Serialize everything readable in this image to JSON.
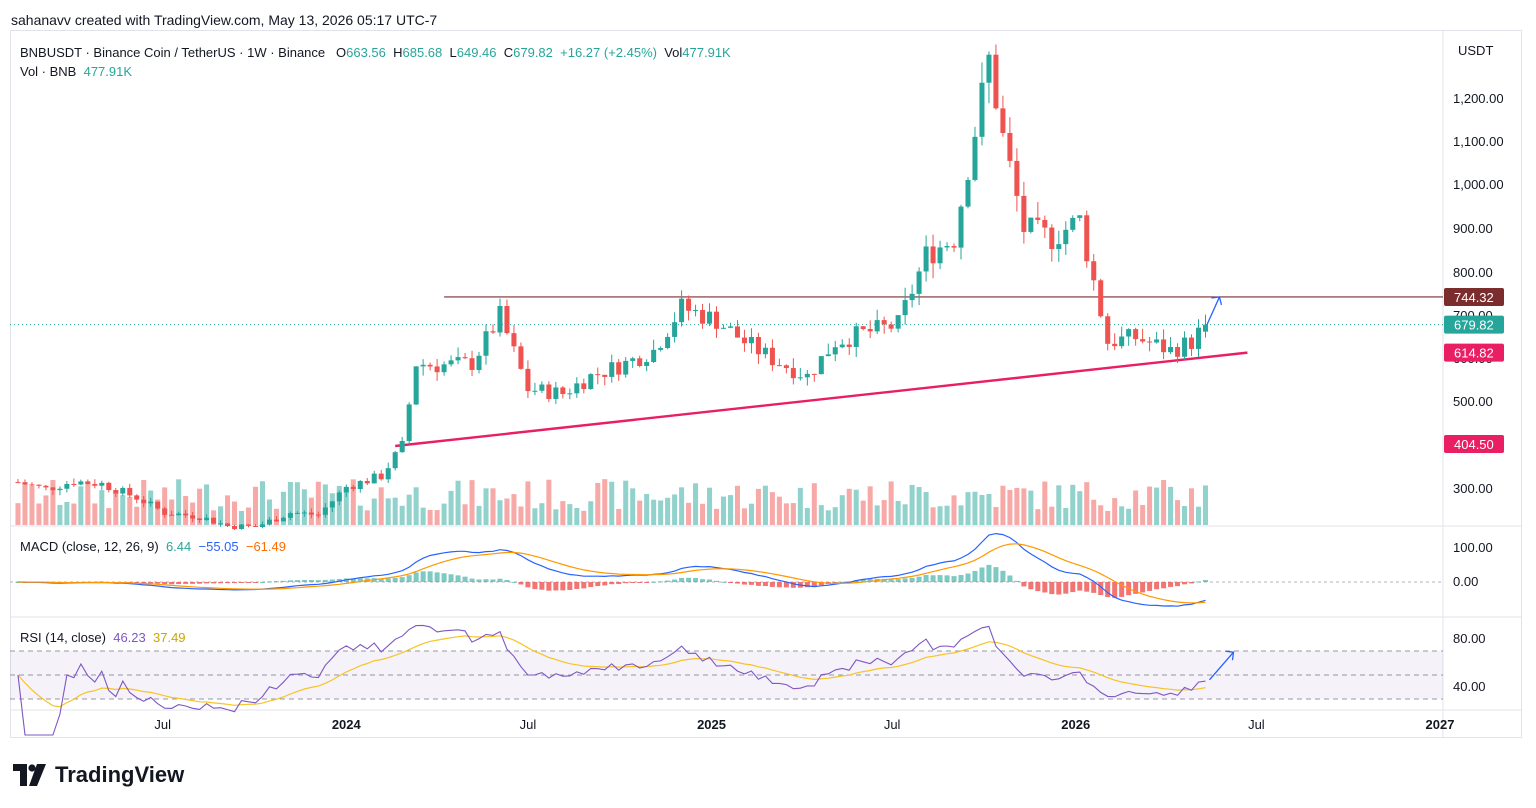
{
  "caption": "sahanavv created with TradingView.com, May 13, 2026 05:17 UTC-7",
  "legend": {
    "symbol": "BNBUSDT · Binance Coin / TetherUS · 1W · Binance",
    "o_label": "O",
    "o_value": "663.56",
    "h_label": "H",
    "h_value": "685.68",
    "l_label": "L",
    "l_value": "649.46",
    "c_label": "C",
    "c_value": "679.82",
    "change": "+16.27 (+2.45%)",
    "vol_label": "Vol",
    "vol_value": "477.91K",
    "vol_line_label": "Vol · BNB",
    "vol_line_value": "477.91K"
  },
  "macd_label": {
    "title": "MACD (close, 12, 26, 9)",
    "hist": "6.44",
    "macd": "−55.05",
    "signal": "−61.49"
  },
  "rsi_label": {
    "title": "RSI (14, close)",
    "rsi": "46.23",
    "ma": "37.49"
  },
  "brand": "TradingView",
  "colors": {
    "up": "#26a69a",
    "down": "#ef5350",
    "support": "#e91e63",
    "resistance": "#7b2d2d",
    "macd": "#2962ff",
    "signal": "#ff9800",
    "rsi": "#7e57c2",
    "rsi_ma": "#f7c325"
  },
  "chart_data": {
    "type": "candlestick",
    "currency": "USDT",
    "y_ticks": [
      "1,200.00",
      "1,100.00",
      "1,000.00",
      "900.00",
      "800.00",
      "700.00",
      "600.00",
      "500.00",
      "300.00"
    ],
    "y_tick_values": [
      1200,
      1100,
      1000,
      900,
      800,
      700,
      600,
      500,
      300
    ],
    "x_ticks": [
      {
        "label": "Jul",
        "date": "2023-07-01",
        "bold": false
      },
      {
        "label": "2024",
        "date": "2024-01-01",
        "bold": true
      },
      {
        "label": "Jul",
        "date": "2024-07-01",
        "bold": false
      },
      {
        "label": "2025",
        "date": "2025-01-01",
        "bold": true
      },
      {
        "label": "Jul",
        "date": "2025-07-01",
        "bold": false
      },
      {
        "label": "2026",
        "date": "2026-01-01",
        "bold": true
      },
      {
        "label": "Jul",
        "date": "2026-07-01",
        "bold": false
      },
      {
        "label": "2027",
        "date": "2027-01-01",
        "bold": true
      }
    ],
    "price_labels": [
      {
        "text": "744.32",
        "value": 744.32,
        "color": "#7b2d2d"
      },
      {
        "text": "679.82",
        "value": 679.82,
        "color": "#26a69a"
      },
      {
        "text": "614.82",
        "value": 614.82,
        "color": "#e91e63"
      },
      {
        "text": "404.50",
        "value": 404.5,
        "color": "#e91e63"
      }
    ],
    "resistance": {
      "value": 744.32,
      "from": "2024-04-01",
      "to": "2027-01-01"
    },
    "support_line": {
      "from_date": "2024-02-19",
      "from_value": 400,
      "to_date": "2026-06-22",
      "to_value": 614.82
    },
    "projection_arrow": {
      "from_date": "2026-05-11",
      "from_value": 672,
      "to_date": "2026-05-25",
      "to_value": 744.32
    },
    "closes": [
      {
        "date": "2023-02-06",
        "close": 316
      },
      {
        "date": "2023-03-06",
        "close": 300
      },
      {
        "date": "2023-04-03",
        "close": 318
      },
      {
        "date": "2023-05-01",
        "close": 312
      },
      {
        "date": "2023-06-05",
        "close": 280
      },
      {
        "date": "2023-07-03",
        "close": 245
      },
      {
        "date": "2023-08-07",
        "close": 236
      },
      {
        "date": "2023-09-04",
        "close": 214
      },
      {
        "date": "2023-10-02",
        "close": 212
      },
      {
        "date": "2023-11-06",
        "close": 245
      },
      {
        "date": "2023-12-04",
        "close": 240
      },
      {
        "date": "2024-01-01",
        "close": 305
      },
      {
        "date": "2024-02-05",
        "close": 330
      },
      {
        "date": "2024-02-26",
        "close": 400
      },
      {
        "date": "2024-03-11",
        "close": 590
      },
      {
        "date": "2024-04-01",
        "close": 585
      },
      {
        "date": "2024-05-06",
        "close": 590
      },
      {
        "date": "2024-06-03",
        "close": 700
      },
      {
        "date": "2024-07-01",
        "close": 530
      },
      {
        "date": "2024-08-05",
        "close": 520
      },
      {
        "date": "2024-09-02",
        "close": 560
      },
      {
        "date": "2024-10-07",
        "close": 590
      },
      {
        "date": "2024-11-04",
        "close": 620
      },
      {
        "date": "2024-12-02",
        "close": 720
      },
      {
        "date": "2025-01-06",
        "close": 690
      },
      {
        "date": "2025-02-03",
        "close": 640
      },
      {
        "date": "2025-03-03",
        "close": 600
      },
      {
        "date": "2025-04-07",
        "close": 560
      },
      {
        "date": "2025-05-05",
        "close": 640
      },
      {
        "date": "2025-06-02",
        "close": 660
      },
      {
        "date": "2025-07-07",
        "close": 680
      },
      {
        "date": "2025-08-04",
        "close": 840
      },
      {
        "date": "2025-09-01",
        "close": 880
      },
      {
        "date": "2025-10-06",
        "close": 1290
      },
      {
        "date": "2025-10-20",
        "close": 1110
      },
      {
        "date": "2025-11-10",
        "close": 900
      },
      {
        "date": "2025-12-08",
        "close": 880
      },
      {
        "date": "2026-01-05",
        "close": 920
      },
      {
        "date": "2026-02-02",
        "close": 640
      },
      {
        "date": "2026-03-02",
        "close": 650
      },
      {
        "date": "2026-04-06",
        "close": 620
      },
      {
        "date": "2026-04-27",
        "close": 640
      },
      {
        "date": "2026-05-11",
        "close": 679.82
      }
    ],
    "macd": {
      "y_ticks": [
        "100.00",
        "0.00"
      ],
      "y_tick_values": [
        100,
        0
      ]
    },
    "rsi": {
      "y_ticks": [
        "80.00",
        "40.00"
      ],
      "y_tick_values": [
        80,
        40
      ],
      "bands": [
        70,
        50,
        30
      ]
    }
  }
}
